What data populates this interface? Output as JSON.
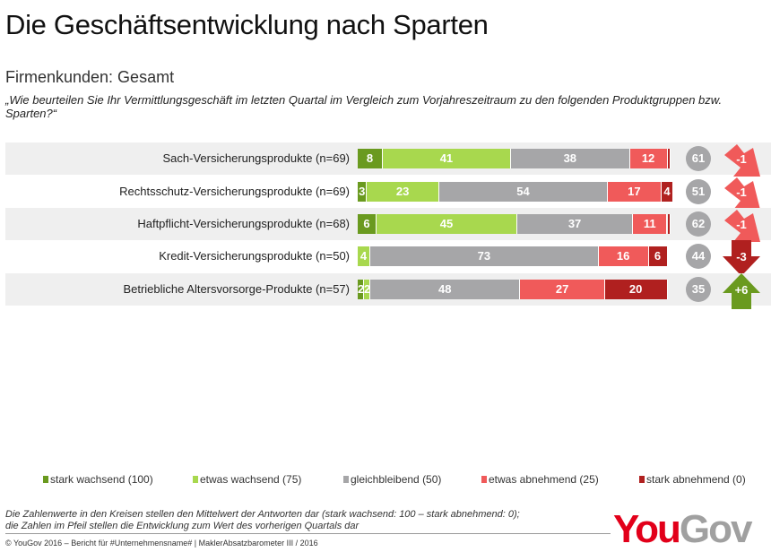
{
  "title": "Die Geschäftsentwicklung nach Sparten",
  "subtitle": "Firmenkunden: Gesamt",
  "question": "„Wie beurteilen Sie Ihr Vermittlungsgeschäft im letzten Quartal im Vergleich zum Vorjahreszeitraum zu den folgenden Produktgruppen bzw. Sparten?“",
  "chart_data": {
    "type": "bar",
    "stacked": true,
    "orientation": "horizontal",
    "xlim": [
      0,
      100
    ],
    "categories": [
      "Sach-Versicherungsprodukte (n=69)",
      "Rechtsschutz-Versicherungsprodukte (n=69)",
      "Haftpflicht-Versicherungsprodukte (n=68)",
      "Kredit-Versicherungsprodukte (n=50)",
      "Betriebliche Altersvorsorge-Produkte (n=57)"
    ],
    "series": [
      {
        "name": "stark wachsend (100)",
        "color": "#6a9a1f",
        "values": [
          8,
          3,
          6,
          0,
          2
        ]
      },
      {
        "name": "etwas wachsend (75)",
        "color": "#a8d84e",
        "values": [
          41,
          23,
          45,
          4,
          2
        ]
      },
      {
        "name": "gleichbleibend (50)",
        "color": "#a6a6a8",
        "values": [
          38,
          54,
          37,
          73,
          48
        ]
      },
      {
        "name": "etwas abnehmend (25)",
        "color": "#f05a5a",
        "values": [
          12,
          17,
          11,
          16,
          27
        ]
      },
      {
        "name": "stark abnehmend (0)",
        "color": "#b0201f",
        "values": [
          1,
          4,
          1,
          6,
          20
        ]
      }
    ],
    "means": [
      61,
      51,
      62,
      44,
      35
    ],
    "changes": [
      "-1",
      "-1",
      "-1",
      "-3",
      "+6"
    ],
    "change_arrows": [
      "down-right",
      "down-right",
      "down-right",
      "down",
      "up"
    ],
    "arrow_colors": [
      "#f05a5a",
      "#f05a5a",
      "#f05a5a",
      "#b0201f",
      "#6a9a1f"
    ]
  },
  "note": [
    "Die Zahlenwerte in den Kreisen stellen den Mittelwert der Antworten dar (stark wachsend: 100 – stark abnehmend: 0);",
    "die Zahlen im Pfeil stellen die Entwicklung zum Wert des vorherigen Quartals dar"
  ],
  "copyright": "© YouGov 2016 – Bericht für #Unternehmensname# | MaklerAbsatzbarometer III / 2016",
  "logo": {
    "part1": "You",
    "part2": "Gov",
    "color1": "#e2001a",
    "color2": "#a0a0a0"
  }
}
